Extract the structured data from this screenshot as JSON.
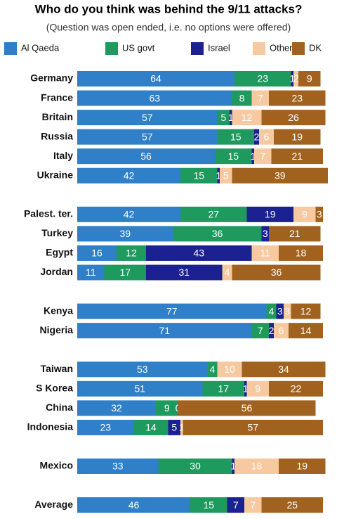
{
  "chart_data": {
    "type": "stacked-bar",
    "orientation": "horizontal",
    "title": "Who do you think was behind the 9/11 attacks?",
    "subtitle": "(Question was open ended, i.e. no options were offered)",
    "categories": [
      "Germany",
      "France",
      "Britain",
      "Russia",
      "Italy",
      "Ukraine",
      null,
      "Palest. ter.",
      "Turkey",
      "Egypt",
      "Jordan",
      null,
      "Kenya",
      "Nigeria",
      null,
      "Taiwan",
      "S Korea",
      "China",
      "Indonesia",
      null,
      "Mexico",
      null,
      "Average"
    ],
    "xlim": [
      0,
      100
    ],
    "series": [
      {
        "name": "Al Qaeda",
        "color": "#2f7fc9",
        "values": [
          64,
          63,
          57,
          57,
          56,
          42,
          null,
          42,
          39,
          16,
          11,
          null,
          77,
          71,
          null,
          53,
          51,
          32,
          23,
          null,
          33,
          null,
          46
        ]
      },
      {
        "name": "US govt",
        "color": "#1f9a5f",
        "values": [
          23,
          8,
          5,
          15,
          15,
          15,
          null,
          27,
          36,
          12,
          17,
          null,
          4,
          7,
          null,
          4,
          17,
          9,
          14,
          null,
          30,
          null,
          15
        ]
      },
      {
        "name": "Israel",
        "color": "#1b2190",
        "values": [
          1,
          null,
          1,
          2,
          1,
          1,
          null,
          19,
          3,
          43,
          31,
          null,
          3,
          2,
          null,
          null,
          1,
          0,
          5,
          null,
          1,
          null,
          7
        ]
      },
      {
        "name": "Other",
        "color": "#f6c9a0",
        "values": [
          2,
          7,
          12,
          6,
          7,
          5,
          null,
          9,
          null,
          11,
          4,
          null,
          3,
          6,
          null,
          10,
          9,
          null,
          1,
          null,
          18,
          null,
          7
        ]
      },
      {
        "name": "DK",
        "color": "#a2621f",
        "values": [
          9,
          23,
          26,
          19,
          21,
          39,
          null,
          3,
          21,
          18,
          36,
          null,
          12,
          14,
          null,
          34,
          22,
          56,
          57,
          null,
          19,
          null,
          25
        ]
      }
    ]
  }
}
